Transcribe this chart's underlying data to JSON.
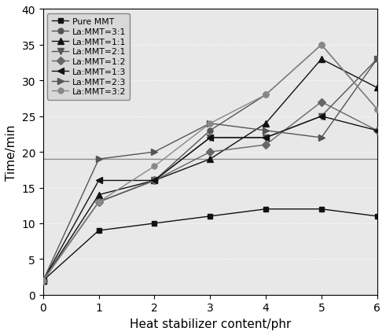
{
  "x": [
    0,
    1,
    2,
    3,
    4,
    5,
    6
  ],
  "series": [
    {
      "label": "Pure MMT",
      "values": [
        2,
        9,
        10,
        11,
        12,
        12,
        11
      ],
      "marker": "s",
      "color": "#1a1a1a",
      "markersize": 5
    },
    {
      "label": "La:MMT=3:1",
      "values": [
        2,
        13,
        16,
        23,
        28,
        35,
        26
      ],
      "marker": "o",
      "color": "#555555",
      "markersize": 5
    },
    {
      "label": "La:MMT=1:1",
      "values": [
        2,
        14,
        16,
        19,
        24,
        33,
        29
      ],
      "marker": "^",
      "color": "#1a1a1a",
      "markersize": 6
    },
    {
      "label": "La:MMT=2:1",
      "values": [
        2,
        13,
        16,
        22,
        22,
        25,
        33
      ],
      "marker": "v",
      "color": "#555555",
      "markersize": 6
    },
    {
      "label": "La:MMT=1:2",
      "values": [
        2,
        13,
        16,
        20,
        21,
        27,
        23
      ],
      "marker": "D",
      "color": "#555555",
      "markersize": 5
    },
    {
      "label": "La:MMT=1:3",
      "values": [
        2,
        16,
        16,
        22,
        22,
        25,
        23
      ],
      "marker": "<",
      "color": "#1a1a1a",
      "markersize": 6
    },
    {
      "label": "La:MMT=2:3",
      "values": [
        2,
        19,
        20,
        24,
        23,
        22,
        33
      ],
      "marker": ">",
      "color": "#555555",
      "markersize": 6
    },
    {
      "label": "La:MMT=3:2",
      "values": [
        2,
        13,
        18,
        24,
        28,
        35,
        26
      ],
      "marker": "o",
      "color": "#888888",
      "markersize": 5
    }
  ],
  "xlabel": "Heat stabilizer content/phr",
  "ylabel": "Time/min",
  "xlim": [
    0,
    6
  ],
  "ylim": [
    0,
    40
  ],
  "yticks": [
    0,
    5,
    10,
    15,
    20,
    25,
    30,
    35,
    40
  ],
  "xticks": [
    0,
    1,
    2,
    3,
    4,
    5,
    6
  ],
  "hline_y": 19,
  "hline_color": "#888888",
  "figsize": [
    4.91,
    4.27
  ],
  "dpi": 100,
  "legend_fontsize": 7.8,
  "axis_fontsize": 11,
  "tick_fontsize": 10,
  "linewidth": 1.0,
  "bg_color": "#e8e8e8"
}
